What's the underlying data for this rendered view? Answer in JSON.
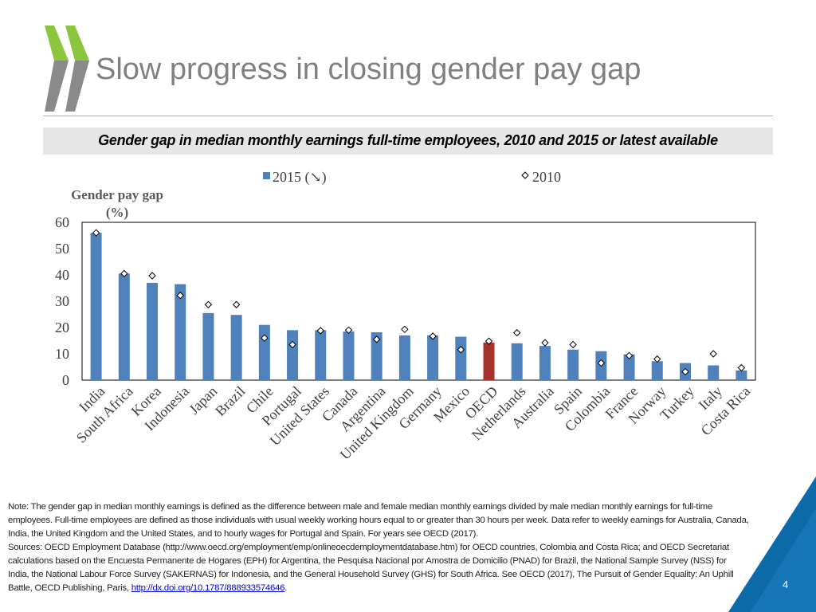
{
  "slide": {
    "title": "Slow progress in closing gender pay gap",
    "subtitle": "Gender gap in median monthly earnings full-time employees, 2010 and 2015 or latest available",
    "page_number": "4"
  },
  "colors": {
    "bar": "#4f81bd",
    "highlight_bar": "#a6322c",
    "marker_fill": "#ffffff",
    "marker_stroke": "#000000",
    "logo_green": "#8cc63f",
    "logo_gray": "#8a8a8a",
    "corner_blue": "#0d6aa8"
  },
  "chart_data": {
    "type": "bar",
    "ylabel": "Gender pay  gap (%)",
    "ylim": [
      0,
      60
    ],
    "yticks": [
      0,
      10,
      20,
      30,
      40,
      50,
      60
    ],
    "categories": [
      "India",
      "South Africa",
      "Korea",
      "Indonesia",
      "Japan",
      "Brazil",
      "Chile",
      "Portugal",
      "United States",
      "Canada",
      "Argentina",
      "United Kingdom",
      "Germany",
      "Mexico",
      "OECD",
      "Netherlands",
      "Australia",
      "Spain",
      "Colombia",
      "France",
      "Norway",
      "Turkey",
      "Italy",
      "Costa Rica"
    ],
    "highlight": "OECD",
    "legend_position": "top",
    "series": [
      {
        "name": "2015 (↘)",
        "kind": "bar",
        "values": [
          56,
          40.5,
          37,
          36.5,
          25.5,
          24.8,
          21,
          19,
          19,
          18.5,
          18.2,
          17,
          17,
          16.5,
          14.3,
          14,
          13,
          11.6,
          11,
          9.8,
          7.2,
          6.5,
          5.6,
          3.7
        ]
      },
      {
        "name": "2010",
        "kind": "marker",
        "values": [
          56,
          40.5,
          39.7,
          32.2,
          28.7,
          28.7,
          16,
          13.5,
          18.8,
          19,
          15.5,
          19.3,
          16.7,
          11.6,
          14.8,
          18,
          14.2,
          13.5,
          6.5,
          9.3,
          8,
          3.2,
          10,
          4.7
        ]
      }
    ]
  },
  "note": {
    "definition": "Note: The gender gap in median monthly earnings is defined as the difference between male and female median monthly earnings divided by male median monthly earnings for full-time employees. Full-time employees are defined as those individuals with usual weekly working hours equal to or greater than 30 hours per week. Data refer to weekly earnings for Australia, Canada, India, the United Kingdom and the United States, and to hourly wages for  Portugal and Spain. For years see OECD (2017).",
    "sources": "Sources: OECD Employment Database (http://www.oecd.org/employment/emp/onlineoecdemploymentdatabase.htm) for OECD countries, Colombia and Costa Rica; and OECD Secretariat calculations based on the Encuesta Permanente de Hogares (EPH) for Argentina, the Pesquisa Nacional por Amostra de Domicilio (PNAD) for Brazil, the National Sample Survey (NSS) for India, the National Labour Force Survey (SAKERNAS) for Indonesia, and the General Household Survey (GHS) for South Africa. See OECD (2017), The Pursuit of Gender Equality: An Uphill Battle, OECD Publishing, Paris, ",
    "link_text": "http://dx.doi.org/10.1787/888933574646",
    "trailing": "."
  }
}
